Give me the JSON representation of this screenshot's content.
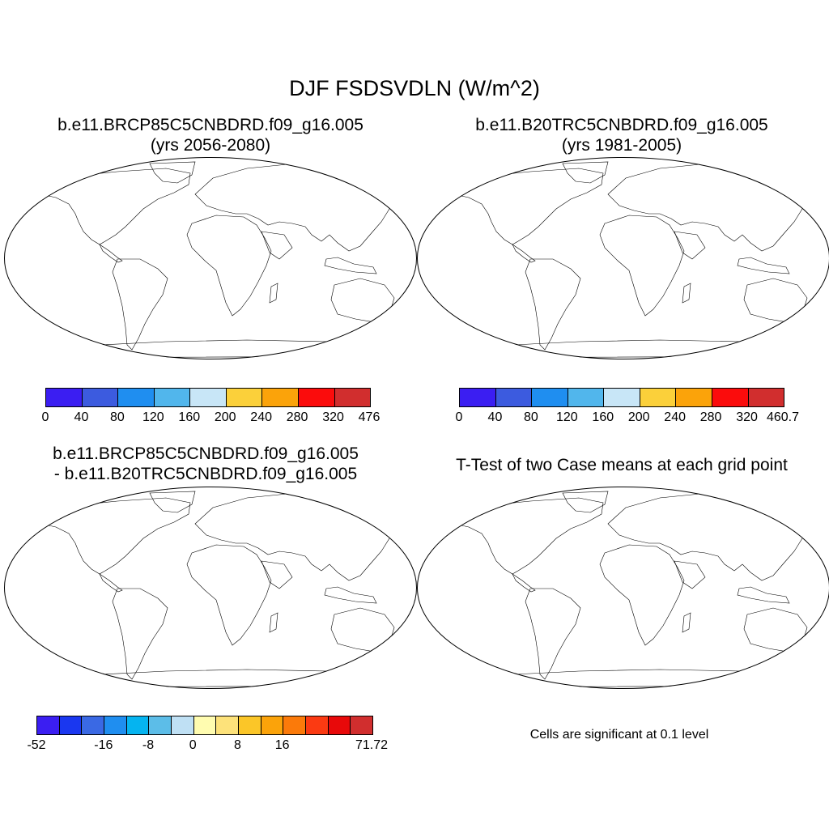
{
  "title": "DJF FSDSVDLN (W/m^2)",
  "colors": {
    "ocean": "#ffffff",
    "coast": "#000000",
    "abs_scale": [
      "#3b1ef2",
      "#3c5bdf",
      "#1f8ef0",
      "#51b6ec",
      "#c8e6f7",
      "#fbd03a",
      "#fba30a",
      "#fb0c0c",
      "#d12e2e"
    ],
    "diff_scale": [
      "#3b1ef2",
      "#1a37f0",
      "#3a69e4",
      "#1f8ef0",
      "#05b4f0",
      "#5cbde8",
      "#bfe0f4",
      "#fffcb0",
      "#fde27a",
      "#fbc628",
      "#fba30a",
      "#fb7a0a",
      "#fb3a12",
      "#e8090a",
      "#d12e2e"
    ],
    "significant": "#f00000"
  },
  "panels": [
    {
      "id": "case",
      "title_line1": "b.e11.BRCP85C5CNBDRD.f09_g16.005",
      "title_line2": "(yrs 2056-2080)",
      "colorbar_labels": [
        "0",
        "40",
        "80",
        "120",
        "160",
        "200",
        "240",
        "280",
        "320",
        "476"
      ]
    },
    {
      "id": "control",
      "title_line1": "b.e11.B20TRC5CNBDRD.f09_g16.005",
      "title_line2": "(yrs 1981-2005)",
      "colorbar_labels": [
        "0",
        "40",
        "80",
        "120",
        "160",
        "200",
        "240",
        "280",
        "320",
        "460.7"
      ]
    },
    {
      "id": "difference",
      "title_line1": "b.e11.BRCP85C5CNBDRD.f09_g16.005",
      "title_line2": "- b.e11.B20TRC5CNBDRD.f09_g16.005",
      "colorbar_labels": [
        "-52",
        "-16",
        "-8",
        "0",
        "8",
        "16",
        "71.72"
      ]
    },
    {
      "id": "ttest",
      "title_line1": "T-Test of two Case means at each grid point",
      "footnote": "Cells are significant at 0.1 level"
    }
  ]
}
